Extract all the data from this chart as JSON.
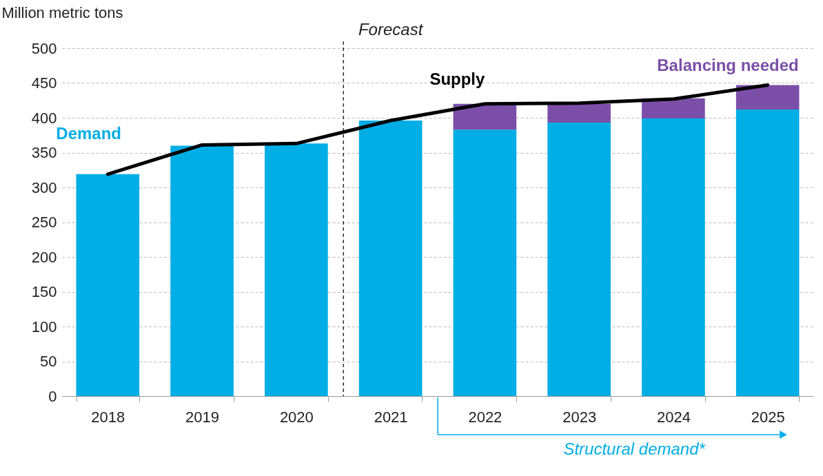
{
  "chart_data": {
    "type": "bar",
    "ylabel": "Million metric tons",
    "categories": [
      "2018",
      "2019",
      "2020",
      "2021",
      "2022",
      "2023",
      "2024",
      "2025"
    ],
    "stacked": true,
    "series": [
      {
        "name": "Demand",
        "color": "#00aee6",
        "values": [
          319,
          360,
          363,
          396,
          383,
          393,
          399,
          412
        ]
      },
      {
        "name": "Balancing needed",
        "color": "#7b4fa8",
        "values": [
          null,
          null,
          null,
          null,
          37,
          27,
          29,
          35
        ]
      },
      {
        "name": "Supply",
        "type": "line",
        "color": "#000000",
        "values": [
          319,
          361,
          363,
          396,
          420,
          421,
          427,
          447
        ]
      }
    ],
    "ylim": [
      0,
      500
    ],
    "yticks": [
      0,
      50,
      100,
      150,
      200,
      250,
      300,
      350,
      400,
      450,
      500
    ],
    "grid": "y",
    "ref_lines": [
      {
        "axis": "x",
        "value": "2021",
        "label": "Forecast",
        "line_style": "dashed",
        "color": "#000000"
      }
    ],
    "annotations": [
      "Structural demand*"
    ]
  }
}
